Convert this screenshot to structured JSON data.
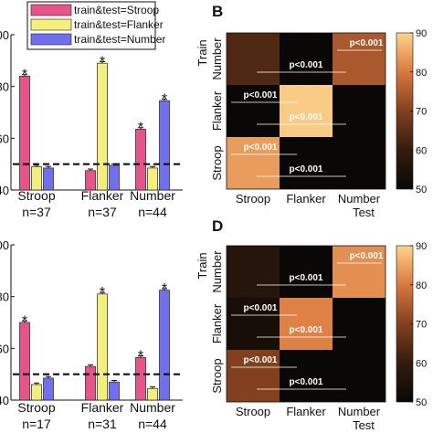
{
  "legend": [
    {
      "label": "train&test=Stroop",
      "color": "#e8548a"
    },
    {
      "label": "train&test=Flanker",
      "color": "#f2f07a"
    },
    {
      "label": "train&test=Number",
      "color": "#6f6ff0"
    }
  ],
  "chart_data": [
    {
      "type": "bar",
      "panel": "A",
      "categories": [
        "Stroop",
        "Flanker",
        "Number"
      ],
      "counts": [
        "n=37",
        "n=37",
        "n=44"
      ],
      "series": [
        {
          "name": "train&test=Stroop",
          "values": [
            84,
            47.5,
            63.5
          ],
          "errors": [
            0.6,
            0.6,
            0.6
          ],
          "star": [
            true,
            false,
            true
          ]
        },
        {
          "name": "train&test=Flanker",
          "values": [
            49,
            89,
            48.5
          ],
          "errors": [
            0.6,
            0.6,
            0.6
          ],
          "star": [
            false,
            true,
            false
          ]
        },
        {
          "name": "train&test=Number",
          "values": [
            48.5,
            49.5,
            74.5
          ],
          "errors": [
            0.6,
            0.6,
            0.6
          ],
          "star": [
            false,
            false,
            true
          ]
        }
      ],
      "ylim": [
        40,
        100
      ],
      "yticks": [
        "40",
        "60",
        "80",
        "100"
      ],
      "chance_line": 50,
      "star_symbol": "*"
    },
    {
      "type": "bar",
      "panel": "C",
      "categories": [
        "Stroop",
        "Flanker",
        "Number"
      ],
      "counts": [
        "n=17",
        "n=31",
        "n=44"
      ],
      "series": [
        {
          "name": "train&test=Stroop",
          "values": [
            70,
            53,
            56.5
          ],
          "errors": [
            0.6,
            0.6,
            0.6
          ],
          "star": [
            true,
            false,
            true
          ]
        },
        {
          "name": "train&test=Flanker",
          "values": [
            46,
            81,
            44.5
          ],
          "errors": [
            0.6,
            0.6,
            0.6
          ],
          "star": [
            false,
            true,
            false
          ]
        },
        {
          "name": "train&test=Number",
          "values": [
            48.5,
            47,
            82.5
          ],
          "errors": [
            0.6,
            0.6,
            0.6
          ],
          "star": [
            false,
            false,
            true
          ]
        }
      ],
      "ylim": [
        40,
        100
      ],
      "yticks": [
        "40",
        "60",
        "80",
        "100"
      ],
      "chance_line": 50,
      "star_symbol": "*"
    },
    {
      "type": "heatmap",
      "panel": "B",
      "xlabel": "Test",
      "ylabel": "Train",
      "x": [
        "Stroop",
        "Flanker",
        "Number"
      ],
      "y": [
        "Stroop",
        "Flanker",
        "Number"
      ],
      "values": [
        [
          84,
          49,
          48.5
        ],
        [
          47.5,
          89,
          49.5
        ],
        [
          63.5,
          48.5,
          74.5
        ]
      ],
      "colorbar": {
        "range": [
          50,
          90
        ],
        "ticks": [
          "50",
          "60",
          "70",
          "80",
          "90"
        ]
      },
      "annotations": [
        {
          "text": "p<0.001",
          "row": 2,
          "col": 2,
          "pos": "upper"
        },
        {
          "text": "p<0.001",
          "row": 2,
          "col": 1,
          "pos": "lower"
        },
        {
          "text": "p<0.001",
          "row": 1,
          "col": 0,
          "pos": "upper"
        },
        {
          "text": "p<0.001",
          "row": 1,
          "col": 1,
          "pos": "lower"
        },
        {
          "text": "p<0.001",
          "row": 0,
          "col": 0,
          "pos": "upper"
        },
        {
          "text": "p<0.001",
          "row": 0,
          "col": 1,
          "pos": "lower"
        }
      ]
    },
    {
      "type": "heatmap",
      "panel": "D",
      "xlabel": "Test",
      "ylabel": "Train",
      "x": [
        "Stroop",
        "Flanker",
        "Number"
      ],
      "y": [
        "Stroop",
        "Flanker",
        "Number"
      ],
      "values": [
        [
          70,
          46,
          48.5
        ],
        [
          53,
          81,
          47
        ],
        [
          56.5,
          44.5,
          82.5
        ]
      ],
      "colorbar": {
        "range": [
          50,
          90
        ],
        "ticks": [
          "50",
          "60",
          "70",
          "80",
          "90"
        ]
      },
      "annotations": [
        {
          "text": "p<0.001",
          "row": 2,
          "col": 2,
          "pos": "upper"
        },
        {
          "text": "p<0.001",
          "row": 2,
          "col": 1,
          "pos": "lower"
        },
        {
          "text": "p<0.001",
          "row": 1,
          "col": 0,
          "pos": "upper"
        },
        {
          "text": "p<0.001",
          "row": 1,
          "col": 1,
          "pos": "lower"
        },
        {
          "text": "p<0.001",
          "row": 0,
          "col": 0,
          "pos": "upper"
        },
        {
          "text": "p<0.001",
          "row": 0,
          "col": 1,
          "pos": "lower"
        }
      ]
    }
  ]
}
